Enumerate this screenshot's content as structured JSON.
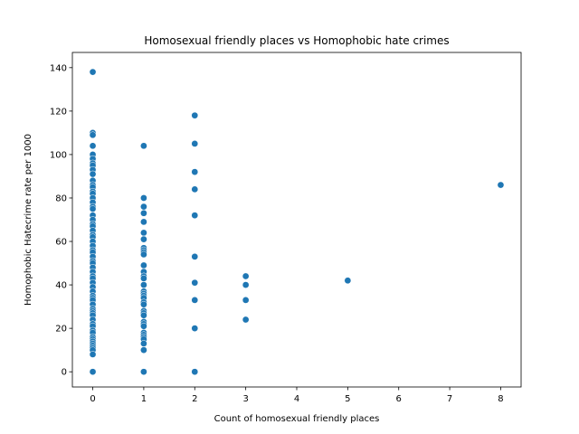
{
  "chart_data": {
    "type": "scatter",
    "title": "Homosexual friendly places vs Homophobic hate crimes",
    "xlabel": "Count of homosexual friendly places",
    "ylabel": "Homophobic Hatecrime rate per 1000",
    "xlim": [
      -0.4,
      8.4
    ],
    "ylim": [
      -7,
      147
    ],
    "xticks": [
      0,
      1,
      2,
      3,
      4,
      5,
      6,
      7,
      8
    ],
    "yticks": [
      0,
      20,
      40,
      60,
      80,
      100,
      120,
      140
    ],
    "grid": false,
    "marker_color": "#1f77b4",
    "points": [
      [
        0,
        138
      ],
      [
        0,
        110
      ],
      [
        0,
        109
      ],
      [
        0,
        104
      ],
      [
        0,
        100
      ],
      [
        0,
        98
      ],
      [
        0,
        96
      ],
      [
        0,
        95
      ],
      [
        0,
        93
      ],
      [
        0,
        91
      ],
      [
        0,
        88
      ],
      [
        0,
        86
      ],
      [
        0,
        85
      ],
      [
        0,
        83
      ],
      [
        0,
        82
      ],
      [
        0,
        80
      ],
      [
        0,
        78
      ],
      [
        0,
        76
      ],
      [
        0,
        75
      ],
      [
        0,
        72
      ],
      [
        0,
        70
      ],
      [
        0,
        68
      ],
      [
        0,
        67
      ],
      [
        0,
        65
      ],
      [
        0,
        63
      ],
      [
        0,
        62
      ],
      [
        0,
        60
      ],
      [
        0,
        58
      ],
      [
        0,
        56
      ],
      [
        0,
        55
      ],
      [
        0,
        53
      ],
      [
        0,
        51
      ],
      [
        0,
        50
      ],
      [
        0,
        48
      ],
      [
        0,
        46
      ],
      [
        0,
        44
      ],
      [
        0,
        43
      ],
      [
        0,
        41
      ],
      [
        0,
        39
      ],
      [
        0,
        37
      ],
      [
        0,
        35
      ],
      [
        0,
        34
      ],
      [
        0,
        33
      ],
      [
        0,
        31
      ],
      [
        0,
        29
      ],
      [
        0,
        28
      ],
      [
        0,
        27
      ],
      [
        0,
        26
      ],
      [
        0,
        24
      ],
      [
        0,
        22
      ],
      [
        0,
        21
      ],
      [
        0,
        19
      ],
      [
        0,
        18
      ],
      [
        0,
        16
      ],
      [
        0,
        15
      ],
      [
        0,
        14
      ],
      [
        0,
        13
      ],
      [
        0,
        12
      ],
      [
        0,
        11
      ],
      [
        0,
        10
      ],
      [
        0,
        8
      ],
      [
        0,
        0
      ],
      [
        1,
        104
      ],
      [
        1,
        80
      ],
      [
        1,
        76
      ],
      [
        1,
        73
      ],
      [
        1,
        69
      ],
      [
        1,
        64
      ],
      [
        1,
        61
      ],
      [
        1,
        57
      ],
      [
        1,
        56
      ],
      [
        1,
        55
      ],
      [
        1,
        54
      ],
      [
        1,
        49
      ],
      [
        1,
        46
      ],
      [
        1,
        44
      ],
      [
        1,
        43
      ],
      [
        1,
        40
      ],
      [
        1,
        37
      ],
      [
        1,
        36
      ],
      [
        1,
        35
      ],
      [
        1,
        34
      ],
      [
        1,
        32
      ],
      [
        1,
        31
      ],
      [
        1,
        28
      ],
      [
        1,
        27
      ],
      [
        1,
        26
      ],
      [
        1,
        23
      ],
      [
        1,
        22
      ],
      [
        1,
        21
      ],
      [
        1,
        18
      ],
      [
        1,
        17
      ],
      [
        1,
        16
      ],
      [
        1,
        15
      ],
      [
        1,
        13
      ],
      [
        1,
        10
      ],
      [
        1,
        0
      ],
      [
        2,
        118
      ],
      [
        2,
        105
      ],
      [
        2,
        92
      ],
      [
        2,
        84
      ],
      [
        2,
        72
      ],
      [
        2,
        53
      ],
      [
        2,
        41
      ],
      [
        2,
        33
      ],
      [
        2,
        20
      ],
      [
        2,
        0
      ],
      [
        3,
        44
      ],
      [
        3,
        40
      ],
      [
        3,
        33
      ],
      [
        3,
        24
      ],
      [
        5,
        42
      ],
      [
        8,
        86
      ]
    ]
  }
}
